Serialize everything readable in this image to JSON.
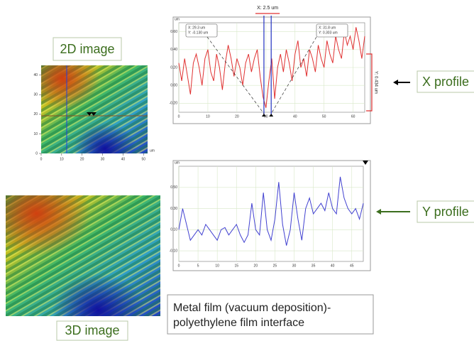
{
  "labels": {
    "image_2d": "2D image",
    "image_3d": "3D image",
    "x_profile": "X profile",
    "y_profile": "Y profile",
    "caption": [
      "Metal film (vacuum deposition)-",
      "polyethylene film interface"
    ]
  },
  "image_2d": {
    "unit": "um",
    "xlim": [
      0,
      52
    ],
    "xticks": [
      0,
      10,
      20,
      30,
      40,
      50
    ],
    "ylim": [
      0,
      45
    ],
    "yticks": [
      0,
      10,
      20,
      30,
      40
    ]
  },
  "x_profile": {
    "unit": "um",
    "color": "#e03030",
    "cursor_gap": "X: 2.5 um",
    "range_label": "Y: 0.434 um",
    "cursors": [
      {
        "x": 29.3,
        "label": [
          "X: 29.3 um",
          "Y: -0.130 um"
        ]
      },
      {
        "x": 31.8,
        "label": [
          "X: 31.8 um",
          "Y: 0.303 um"
        ]
      }
    ],
    "xlim": [
      0,
      64
    ],
    "xticks": [
      0,
      10,
      20,
      30,
      40,
      50,
      60
    ],
    "ylim": [
      -0.3,
      0.7
    ],
    "yticks": [
      {
        "value": -0.2,
        "label": "-0.20"
      },
      {
        "value": 0,
        "label": "0.00"
      },
      {
        "value": 0.2,
        "label": "0.20"
      },
      {
        "value": 0.4,
        "label": "0.40"
      },
      {
        "value": 0.6,
        "label": "0.60"
      }
    ],
    "x": [
      0,
      1,
      2,
      3,
      4,
      5,
      6,
      7,
      8,
      9,
      10,
      11,
      12,
      13,
      14,
      15,
      16,
      17,
      18,
      19,
      20,
      21,
      22,
      23,
      24,
      25,
      26,
      27,
      28,
      29,
      30,
      31,
      32,
      33,
      34,
      35,
      36,
      37,
      38,
      39,
      40,
      41,
      42,
      43,
      44,
      45,
      46,
      47,
      48,
      49,
      50,
      51,
      52,
      53,
      54,
      55,
      56,
      57,
      58,
      59,
      60,
      61,
      62,
      63,
      64
    ],
    "values": [
      0.25,
      0.05,
      0.3,
      0.1,
      -0.1,
      0.25,
      0.35,
      0.2,
      0.0,
      0.3,
      0.4,
      0.15,
      0.05,
      0.35,
      0.2,
      -0.05,
      0.25,
      0.45,
      0.3,
      0.1,
      0.3,
      0.2,
      0.0,
      0.25,
      0.35,
      0.15,
      0.3,
      0.4,
      0.1,
      -0.13,
      -0.25,
      0.05,
      0.3,
      -0.15,
      0.2,
      0.35,
      0.15,
      0.4,
      0.25,
      0.05,
      0.35,
      0.5,
      0.2,
      0.3,
      0.1,
      0.4,
      0.3,
      0.15,
      0.45,
      0.3,
      0.2,
      0.5,
      0.35,
      0.25,
      0.55,
      0.4,
      0.3,
      0.6,
      0.45,
      0.55,
      0.4,
      0.65,
      0.5,
      0.3,
      0.55
    ]
  },
  "y_profile": {
    "unit": "um",
    "color": "#4040d0",
    "xlim": [
      0,
      48
    ],
    "xticks": [
      0,
      5,
      10,
      15,
      20,
      25,
      30,
      35,
      40,
      45
    ],
    "ylim": [
      -0.2,
      0.7
    ],
    "yticks": [
      {
        "value": -0.1,
        "label": "-0.10"
      },
      {
        "value": 0.1,
        "label": "0.10"
      },
      {
        "value": 0.3,
        "label": "0.30"
      },
      {
        "value": 0.5,
        "label": "0.50"
      }
    ],
    "x": [
      0,
      1,
      2,
      3,
      4,
      5,
      6,
      7,
      8,
      9,
      10,
      11,
      12,
      13,
      14,
      15,
      16,
      17,
      18,
      19,
      20,
      21,
      22,
      23,
      24,
      25,
      26,
      27,
      28,
      29,
      30,
      31,
      32,
      33,
      34,
      35,
      36,
      37,
      38,
      39,
      40,
      41,
      42,
      43,
      44,
      45,
      46,
      47,
      48
    ],
    "values": [
      0.1,
      0.3,
      0.15,
      0.0,
      0.05,
      0.1,
      0.05,
      0.15,
      0.1,
      0.05,
      0.0,
      0.1,
      0.12,
      0.05,
      0.1,
      0.15,
      0.05,
      -0.02,
      0.05,
      0.35,
      0.1,
      0.05,
      0.45,
      0.1,
      0.0,
      0.2,
      0.55,
      0.15,
      -0.05,
      0.1,
      0.45,
      0.2,
      0.0,
      0.3,
      0.4,
      0.25,
      0.3,
      0.35,
      0.28,
      0.45,
      0.3,
      0.25,
      0.6,
      0.4,
      0.3,
      0.25,
      0.3,
      0.2,
      0.35
    ]
  }
}
